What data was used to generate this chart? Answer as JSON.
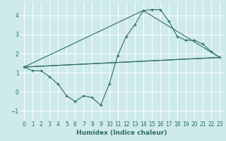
{
  "xlabel": "Humidex (Indice chaleur)",
  "ylabel": "",
  "bg_color": "#ceeaea",
  "grid_color": "#ffffff",
  "line_color": "#2d6e63",
  "xlim": [
    -0.5,
    23.5
  ],
  "ylim": [
    -1.5,
    4.7
  ],
  "xticks": [
    0,
    1,
    2,
    3,
    4,
    5,
    6,
    7,
    8,
    9,
    10,
    11,
    12,
    13,
    14,
    15,
    16,
    17,
    18,
    19,
    20,
    21,
    22,
    23
  ],
  "yticks": [
    -1,
    0,
    1,
    2,
    3,
    4
  ],
  "series1_x": [
    0,
    1,
    2,
    3,
    4,
    5,
    6,
    7,
    8,
    9,
    10,
    11,
    12,
    13,
    14,
    15,
    16,
    17,
    18,
    19,
    20,
    21,
    22,
    23
  ],
  "series1_y": [
    1.3,
    1.1,
    1.1,
    0.8,
    0.4,
    -0.2,
    -0.5,
    -0.2,
    -0.3,
    -0.7,
    0.4,
    1.9,
    2.9,
    3.5,
    4.25,
    4.3,
    4.3,
    3.7,
    2.9,
    2.7,
    2.7,
    2.5,
    2.1,
    1.8
  ],
  "series2_x": [
    0,
    23
  ],
  "series2_y": [
    1.3,
    1.8
  ],
  "series3_x": [
    0,
    14,
    23,
    0
  ],
  "series3_y": [
    1.3,
    4.25,
    1.8,
    1.3
  ],
  "xlabel_fontsize": 6.5,
  "tick_fontsize": 5.5
}
